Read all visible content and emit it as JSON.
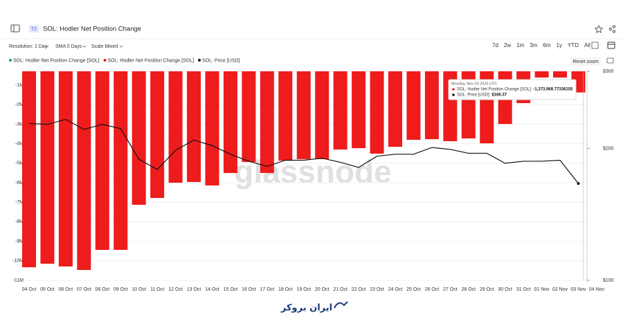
{
  "header": {
    "badge": "T2",
    "title": "SOL: Hodler Net Position Change"
  },
  "controls": {
    "resolution": "Resolution: 1 Day",
    "sma": "SMA 0 Days",
    "scale": "Scale Mixed",
    "ranges": [
      "7d",
      "2w",
      "1m",
      "3m",
      "6m",
      "1y",
      "YTD",
      "All"
    ],
    "reset": "Reset zoom"
  },
  "watermark": "glassnode",
  "footer_logo": "ایران بروکر",
  "chart_data": {
    "type": "bar",
    "categories": [
      "04 Oct",
      "05 Oct",
      "06 Oct",
      "07 Oct",
      "08 Oct",
      "09 Oct",
      "10 Oct",
      "11 Oct",
      "12 Oct",
      "13 Oct",
      "14 Oct",
      "15 Oct",
      "16 Oct",
      "17 Oct",
      "18 Oct",
      "19 Oct",
      "20 Oct",
      "21 Oct",
      "22 Oct",
      "23 Oct",
      "24 Oct",
      "25 Oct",
      "26 Oct",
      "27 Oct",
      "28 Oct",
      "29 Oct",
      "30 Oct",
      "31 Oct",
      "01 Nov",
      "02 Nov",
      "03 Nov",
      "04 Nov"
    ],
    "series": [
      {
        "name": "SOL: Hodler Net Position Change [SOL]",
        "color": "#ee1c1c",
        "positive_color": "#1aa260",
        "values": [
          -10330000,
          -10150000,
          -10290000,
          -10470000,
          -9440000,
          -9440000,
          -7130000,
          -6780000,
          -6000000,
          -5960000,
          -6140000,
          -5500000,
          -4940000,
          -5500000,
          -4870000,
          -4790000,
          -4790000,
          -4300000,
          -4230000,
          -4510000,
          -4160000,
          -3800000,
          -3770000,
          -3870000,
          -3730000,
          -3980000,
          -2990000,
          -1920000,
          -610000,
          -610000,
          -1373968.77336155,
          null
        ]
      },
      {
        "name": "SOL: Price [USD]",
        "color": "#111111",
        "type": "line",
        "axis": "y2",
        "values": [
          228,
          227,
          233,
          221,
          227,
          222,
          189,
          179,
          198,
          209,
          203,
          194,
          187,
          182,
          188,
          188,
          190,
          186,
          181,
          192,
          194,
          194,
          201,
          199,
          195,
          195,
          185,
          187,
          187,
          188,
          166.37,
          null
        ]
      }
    ],
    "ylim": [
      -11000000,
      -290000
    ],
    "yticks": [
      {
        "value": -1000000,
        "label": "-1M"
      },
      {
        "value": -2000000,
        "label": "-2M"
      },
      {
        "value": -3000000,
        "label": "-3M"
      },
      {
        "value": -4000000,
        "label": "-4M"
      },
      {
        "value": -5000000,
        "label": "-5M"
      },
      {
        "value": -6000000,
        "label": "-6M"
      },
      {
        "value": -7000000,
        "label": "-7M"
      },
      {
        "value": -8000000,
        "label": "-8M"
      },
      {
        "value": -9000000,
        "label": "-9M"
      },
      {
        "value": -10000000,
        "label": "-10M"
      },
      {
        "value": -11000000,
        "label": "-11M"
      }
    ],
    "y2lim": [
      100,
      300
    ],
    "y2log": true,
    "y2ticks": [
      {
        "value": 300,
        "label": "$300"
      },
      {
        "value": 200,
        "label": "$200"
      },
      {
        "value": 100,
        "label": "$100"
      }
    ],
    "grid": true,
    "tooltip": {
      "index": 30,
      "date": "Monday, Nov 03 2025 UTC",
      "rows": [
        {
          "name": "SOL: Hodler Net Position Change [SOL]:",
          "value": "-1,373,968.77336155"
        },
        {
          "name": "SOL: Price [USD]:",
          "value": "$166.37"
        }
      ]
    }
  }
}
